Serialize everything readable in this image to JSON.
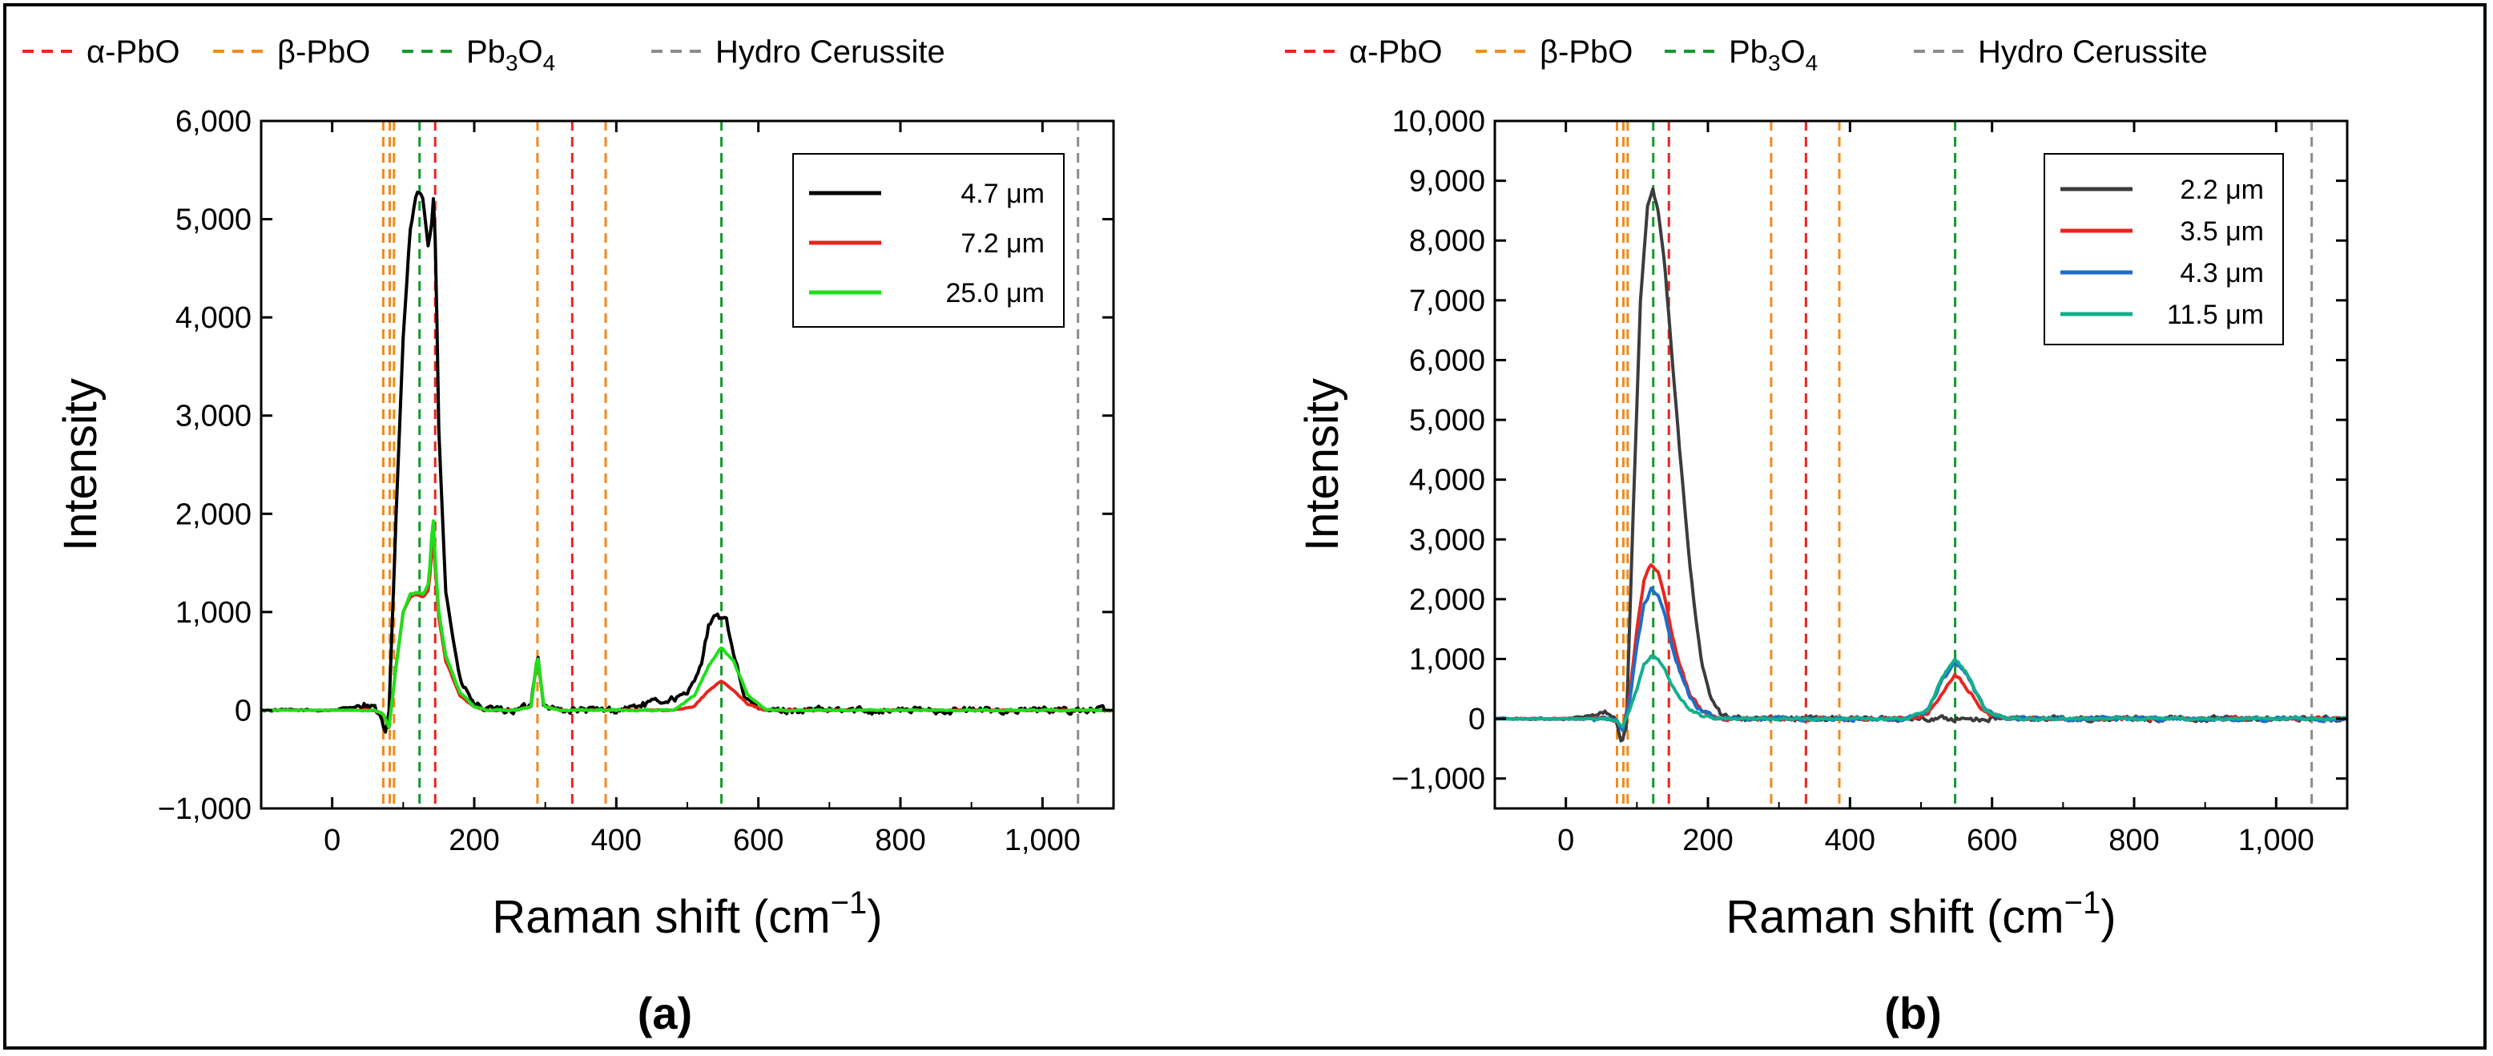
{
  "top_legend": {
    "items": [
      {
        "label_main": "α-PbO",
        "color": "#e8251f"
      },
      {
        "label_main": "β-PbO",
        "color": "#f08b1d"
      },
      {
        "label_main": "Pb",
        "sub1": "3",
        "label_mid": "O",
        "sub2": "4",
        "color": "#149a2c"
      },
      {
        "label_main": "Hydro Cerussite",
        "color": "#8c8c8c"
      }
    ]
  },
  "chart_data": [
    {
      "panel_label": "(a)",
      "type": "line",
      "xlabel": "Raman shift (cm",
      "xlabel_sup": "−1",
      "xlabel_close": ")",
      "ylabel": "Intensity",
      "xlim": [
        -100,
        1100
      ],
      "ylim": [
        -1000,
        6000
      ],
      "xticks": [
        0,
        200,
        400,
        600,
        800,
        1000
      ],
      "xtick_labels": [
        "0",
        "200",
        "400",
        "600",
        "800",
        "1,000"
      ],
      "yticks": [
        -1000,
        0,
        1000,
        2000,
        3000,
        4000,
        5000,
        6000
      ],
      "ytick_labels": [
        "−1,000",
        "0",
        "1,000",
        "2,000",
        "3,000",
        "4,000",
        "5,000",
        "6,000"
      ],
      "reference_lines": [
        {
          "x": 72,
          "phase": "β-PbO",
          "color": "#f08b1d"
        },
        {
          "x": 81,
          "phase": "β-PbO",
          "color": "#f08b1d"
        },
        {
          "x": 87,
          "phase": "β-PbO",
          "color": "#f08b1d"
        },
        {
          "x": 123,
          "phase": "Pb3O4",
          "color": "#149a2c"
        },
        {
          "x": 145,
          "phase": "α-PbO",
          "color": "#e8251f"
        },
        {
          "x": 289,
          "phase": "β-PbO",
          "color": "#f08b1d"
        },
        {
          "x": 338,
          "phase": "α-PbO",
          "color": "#e8251f"
        },
        {
          "x": 385,
          "phase": "β-PbO",
          "color": "#f08b1d"
        },
        {
          "x": 548,
          "phase": "Pb3O4",
          "color": "#149a2c"
        },
        {
          "x": 1050,
          "phase": "Hydro Cerussite",
          "color": "#8c8c8c"
        }
      ],
      "legend": {
        "position": "top-right"
      },
      "series": [
        {
          "name": "4.7 μm",
          "color": "#000000",
          "noise": 55,
          "x": [
            -100,
            0,
            20,
            45,
            60,
            70,
            75,
            80,
            90,
            100,
            110,
            120,
            128,
            135,
            140,
            143,
            146,
            150,
            160,
            180,
            200,
            220,
            260,
            280,
            289,
            298,
            320,
            400,
            500,
            520,
            530,
            540,
            548,
            555,
            565,
            580,
            600,
            700,
            800,
            900,
            1000,
            1100
          ],
          "y": [
            0,
            0,
            20,
            60,
            30,
            -120,
            -250,
            -50,
            2000,
            3800,
            4900,
            5280,
            5200,
            4700,
            4950,
            5280,
            4600,
            2900,
            1200,
            300,
            60,
            0,
            0,
            50,
            600,
            50,
            0,
            0,
            150,
            500,
            850,
            950,
            950,
            900,
            600,
            150,
            0,
            0,
            0,
            0,
            0,
            0
          ]
        },
        {
          "name": "7.2 μm",
          "color": "#e8251f",
          "noise": 8,
          "x": [
            -100,
            0,
            60,
            72,
            80,
            90,
            100,
            110,
            118,
            128,
            136,
            142,
            146,
            150,
            160,
            180,
            200,
            220,
            260,
            280,
            289,
            298,
            320,
            480,
            510,
            530,
            548,
            565,
            585,
            610,
            700,
            1100
          ],
          "y": [
            0,
            0,
            0,
            -40,
            -180,
            450,
            1000,
            1150,
            1180,
            1150,
            1220,
            1780,
            1350,
            950,
            500,
            150,
            30,
            0,
            0,
            40,
            560,
            40,
            0,
            0,
            40,
            200,
            300,
            200,
            60,
            0,
            0,
            0
          ]
        },
        {
          "name": "25.0 μm",
          "color": "#1ee01a",
          "noise": 12,
          "x": [
            -100,
            0,
            60,
            72,
            80,
            90,
            100,
            110,
            118,
            128,
            136,
            142,
            146,
            150,
            160,
            180,
            200,
            220,
            260,
            280,
            289,
            298,
            320,
            480,
            510,
            530,
            548,
            565,
            585,
            610,
            700,
            1100
          ],
          "y": [
            0,
            0,
            0,
            -40,
            -180,
            450,
            1000,
            1180,
            1200,
            1180,
            1300,
            2000,
            1400,
            1000,
            550,
            180,
            40,
            0,
            0,
            40,
            580,
            40,
            0,
            0,
            150,
            450,
            640,
            500,
            150,
            0,
            0,
            0
          ]
        }
      ]
    },
    {
      "panel_label": "(b)",
      "type": "line",
      "xlabel": "Raman shift (cm",
      "xlabel_sup": "−1",
      "xlabel_close": ")",
      "ylabel": "Intensity",
      "xlim": [
        -100,
        1100
      ],
      "ylim": [
        -1500,
        10000
      ],
      "xticks": [
        0,
        200,
        400,
        600,
        800,
        1000
      ],
      "xtick_labels": [
        "0",
        "200",
        "400",
        "600",
        "800",
        "1,000"
      ],
      "yticks": [
        -1000,
        0,
        1000,
        2000,
        3000,
        4000,
        5000,
        6000,
        7000,
        8000,
        9000,
        10000
      ],
      "ytick_labels": [
        "−1,000",
        "0",
        "1,000",
        "2,000",
        "3,000",
        "4,000",
        "5,000",
        "6,000",
        "7,000",
        "8,000",
        "9,000",
        "10,000"
      ],
      "reference_lines": [
        {
          "x": 72,
          "phase": "β-PbO",
          "color": "#f08b1d"
        },
        {
          "x": 81,
          "phase": "β-PbO",
          "color": "#f08b1d"
        },
        {
          "x": 87,
          "phase": "β-PbO",
          "color": "#f08b1d"
        },
        {
          "x": 123,
          "phase": "Pb3O4",
          "color": "#149a2c"
        },
        {
          "x": 145,
          "phase": "α-PbO",
          "color": "#e8251f"
        },
        {
          "x": 289,
          "phase": "β-PbO",
          "color": "#f08b1d"
        },
        {
          "x": 338,
          "phase": "α-PbO",
          "color": "#e8251f"
        },
        {
          "x": 385,
          "phase": "β-PbO",
          "color": "#f08b1d"
        },
        {
          "x": 548,
          "phase": "Pb3O4",
          "color": "#149a2c"
        },
        {
          "x": 1050,
          "phase": "Hydro Cerussite",
          "color": "#8c8c8c"
        }
      ],
      "legend": {
        "position": "top-right"
      },
      "series": [
        {
          "name": "2.2 μm",
          "color": "#3c3c3c",
          "noise": 70,
          "x": [
            -100,
            0,
            30,
            55,
            70,
            78,
            85,
            95,
            105,
            115,
            122,
            130,
            140,
            150,
            160,
            175,
            190,
            205,
            220,
            240,
            300,
            1100
          ],
          "y": [
            0,
            0,
            40,
            120,
            0,
            -400,
            -150,
            3500,
            7000,
            8600,
            8900,
            8500,
            7500,
            6000,
            4500,
            2500,
            1000,
            300,
            50,
            0,
            0,
            0
          ]
        },
        {
          "name": "3.5 μm",
          "color": "#e8251f",
          "noise": 45,
          "x": [
            -100,
            0,
            60,
            72,
            80,
            90,
            100,
            110,
            120,
            130,
            140,
            150,
            160,
            175,
            190,
            210,
            230,
            480,
            510,
            530,
            548,
            565,
            590,
            620,
            1100
          ],
          "y": [
            0,
            0,
            0,
            -50,
            -180,
            400,
            1500,
            2300,
            2580,
            2450,
            2000,
            1400,
            900,
            400,
            150,
            20,
            0,
            0,
            80,
            450,
            750,
            500,
            100,
            0,
            0
          ]
        },
        {
          "name": "4.3 μm",
          "color": "#1e6ec8",
          "noise": 55,
          "x": [
            -100,
            0,
            60,
            72,
            80,
            90,
            100,
            110,
            120,
            130,
            140,
            150,
            160,
            175,
            190,
            210,
            230,
            480,
            510,
            530,
            548,
            565,
            590,
            620,
            1100
          ],
          "y": [
            0,
            0,
            0,
            -50,
            -180,
            350,
            1200,
            1900,
            2150,
            2050,
            1700,
            1200,
            800,
            350,
            120,
            20,
            0,
            0,
            150,
            650,
            950,
            700,
            150,
            0,
            0
          ]
        },
        {
          "name": "11.5 μm",
          "color": "#13b08a",
          "noise": 30,
          "x": [
            -100,
            0,
            60,
            72,
            80,
            90,
            100,
            110,
            120,
            130,
            140,
            150,
            160,
            175,
            190,
            210,
            230,
            480,
            510,
            530,
            548,
            565,
            590,
            620,
            1100
          ],
          "y": [
            0,
            0,
            0,
            -50,
            -150,
            150,
            500,
            900,
            1050,
            1000,
            800,
            550,
            350,
            150,
            50,
            10,
            0,
            0,
            150,
            700,
            1000,
            750,
            150,
            0,
            0
          ]
        }
      ]
    }
  ]
}
